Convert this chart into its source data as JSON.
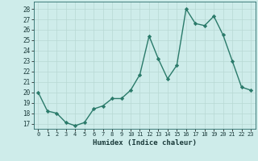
{
  "x": [
    0,
    1,
    2,
    3,
    4,
    5,
    6,
    7,
    8,
    9,
    10,
    11,
    12,
    13,
    14,
    15,
    16,
    17,
    18,
    19,
    20,
    21,
    22,
    23
  ],
  "y": [
    20.0,
    18.2,
    18.0,
    17.1,
    16.8,
    17.1,
    18.4,
    18.7,
    19.4,
    19.4,
    20.2,
    21.7,
    25.4,
    23.2,
    21.3,
    22.6,
    28.0,
    26.6,
    26.4,
    27.3,
    25.5,
    23.0,
    20.5,
    20.2
  ],
  "line_color": "#2a7a6a",
  "marker": "D",
  "marker_size": 2.2,
  "linewidth": 1.0,
  "xlabel": "Humidex (Indice chaleur)",
  "ylabel_ticks": [
    17,
    18,
    19,
    20,
    21,
    22,
    23,
    24,
    25,
    26,
    27,
    28
  ],
  "ylim": [
    16.5,
    28.7
  ],
  "xlim": [
    -0.5,
    23.5
  ],
  "background_color": "#ceecea",
  "grid_color": "#b8d8d4",
  "xtick_labels": [
    "0",
    "1",
    "2",
    "3",
    "4",
    "5",
    "6",
    "7",
    "8",
    "9",
    "10",
    "11",
    "12",
    "13",
    "14",
    "15",
    "16",
    "17",
    "18",
    "19",
    "20",
    "21",
    "22",
    "23"
  ]
}
